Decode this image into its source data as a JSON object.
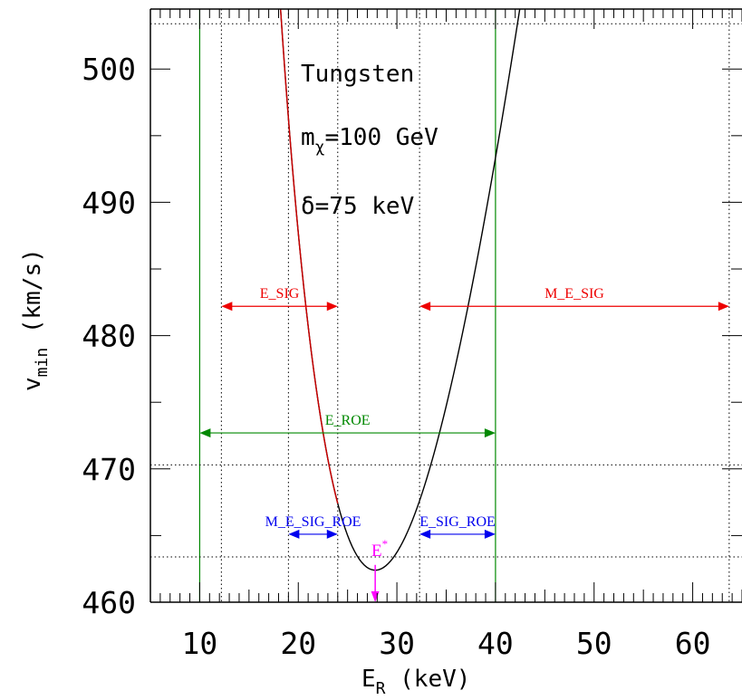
{
  "chart_data": {
    "type": "line",
    "annotations": {
      "target": "Tungsten",
      "mass_label": "m",
      "mass_sub": "χ",
      "mass_value": "=100 GeV",
      "delta_label": "δ=75 keV",
      "estar_label": "E",
      "estar_sup": "*"
    },
    "xlabel": "E",
    "xlabel_sub": "R",
    "xlabel_unit": " (keV)",
    "ylabel": "v",
    "ylabel_sub": "min",
    "ylabel_unit": " (km/s)",
    "xlim": [
      5,
      65
    ],
    "ylim": [
      460,
      504.5
    ],
    "x_ticks": [
      10,
      20,
      30,
      40,
      50,
      60
    ],
    "x_tick_labels": [
      "10",
      "20",
      "30",
      "40",
      "50",
      "60"
    ],
    "y_ticks": [
      460,
      470,
      480,
      490,
      500
    ],
    "y_tick_labels": [
      "460",
      "470",
      "480",
      "490",
      "500"
    ],
    "grid": false,
    "curve": {
      "description_of_formula": "vmin(E) = v0 * (E/E0 + 1/(E/E0)) / 2, minimum at E*",
      "E_star": 27.8,
      "v_min_at_E_star": 462.4,
      "x_range": [
        11.3,
        65
      ],
      "color": "#000000",
      "highlight_range": [
        11.3,
        24.0
      ],
      "highlight_color": "#cc0000"
    },
    "vertical_lines": [
      {
        "x": 10,
        "color": "#008800",
        "style": "solid"
      },
      {
        "x": 40,
        "color": "#008800",
        "style": "solid"
      },
      {
        "x": 12.2,
        "color": "#000000",
        "style": "dotted"
      },
      {
        "x": 19.0,
        "color": "#000000",
        "style": "dotted"
      },
      {
        "x": 24.0,
        "color": "#000000",
        "style": "dotted"
      },
      {
        "x": 32.3,
        "color": "#000000",
        "style": "dotted"
      },
      {
        "x": 63.7,
        "color": "#000000",
        "style": "dotted"
      }
    ],
    "horizontal_lines": [
      {
        "y": 503.4,
        "color": "#000000",
        "style": "dotted"
      },
      {
        "y": 470.3,
        "color": "#000000",
        "style": "dotted"
      },
      {
        "y": 463.4,
        "color": "#000000",
        "style": "dotted"
      }
    ],
    "ranges": [
      {
        "name": "E_SIG",
        "x1": 12.2,
        "x2": 24.0,
        "y": 482.2,
        "color": "#ee0000"
      },
      {
        "name": "M_E_SIG",
        "x1": 32.3,
        "x2": 63.7,
        "y": 482.2,
        "color": "#ee0000"
      },
      {
        "name": "E_ROE",
        "x1": 10.0,
        "x2": 40.0,
        "y": 472.7,
        "color": "#008800"
      },
      {
        "name": "M_E_SIG_ROE",
        "x1": 19.0,
        "x2": 24.0,
        "y": 465.1,
        "color": "#0000ee"
      },
      {
        "name": "E_SIG_ROE",
        "x1": 32.3,
        "x2": 40.0,
        "y": 465.1,
        "color": "#0000ee"
      }
    ],
    "estar_arrow": {
      "x": 27.8,
      "y_from": 462.8,
      "y_to": 460.0,
      "color": "#ff00ff"
    }
  }
}
